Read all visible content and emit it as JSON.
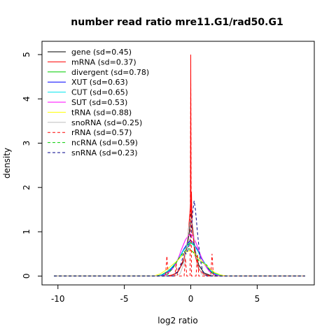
{
  "chart_data": {
    "type": "line",
    "title": "number read ratio mre11.G1/rad50.G1",
    "xlabel": "log2 ratio",
    "ylabel": "density",
    "xlim": [
      -11.2,
      9.3
    ],
    "ylim": [
      -0.2,
      5.3
    ],
    "x_ticks": [
      {
        "value": -10,
        "label": "-10"
      },
      {
        "value": -5,
        "label": "-5"
      },
      {
        "value": 0,
        "label": "0"
      },
      {
        "value": 5,
        "label": "5"
      }
    ],
    "y_ticks": [
      {
        "value": 0,
        "label": "0"
      },
      {
        "value": 1,
        "label": "1"
      },
      {
        "value": 2,
        "label": "2"
      },
      {
        "value": 3,
        "label": "3"
      },
      {
        "value": 4,
        "label": "4"
      },
      {
        "value": 5,
        "label": "5"
      }
    ],
    "grid": false,
    "legend_position": "top-left",
    "series": [
      {
        "name": "gene (sd=0.45)",
        "color": "#000000",
        "dashed": false,
        "points": [
          [
            -10.3,
            0
          ],
          [
            -2.0,
            0
          ],
          [
            -1.5,
            0.01
          ],
          [
            -1.0,
            0.08
          ],
          [
            -0.6,
            0.3
          ],
          [
            -0.3,
            0.62
          ],
          [
            -0.1,
            1.0
          ],
          [
            0,
            1.35
          ],
          [
            0.05,
            1.55
          ],
          [
            0.1,
            1.1
          ],
          [
            0.3,
            0.6
          ],
          [
            0.6,
            0.25
          ],
          [
            1.0,
            0.07
          ],
          [
            1.5,
            0.01
          ],
          [
            2.0,
            0
          ],
          [
            8.6,
            0
          ]
        ]
      },
      {
        "name": "mRNA (sd=0.37)",
        "color": "#ff0000",
        "dashed": false,
        "points": [
          [
            -10.3,
            0
          ],
          [
            -1.8,
            0
          ],
          [
            -1.3,
            0.03
          ],
          [
            -0.9,
            0.12
          ],
          [
            -0.5,
            0.4
          ],
          [
            -0.25,
            0.8
          ],
          [
            -0.1,
            1.3
          ],
          [
            -0.02,
            1.6
          ],
          [
            0,
            5.0
          ],
          [
            0.02,
            1.4
          ],
          [
            0.05,
            1.9
          ],
          [
            0.1,
            1.2
          ],
          [
            0.3,
            0.5
          ],
          [
            0.6,
            0.15
          ],
          [
            1.0,
            0.04
          ],
          [
            1.5,
            0
          ],
          [
            8.6,
            0
          ]
        ]
      },
      {
        "name": "divergent (sd=0.78)",
        "color": "#00cd00",
        "dashed": false,
        "points": [
          [
            -10.3,
            0
          ],
          [
            -2.6,
            0
          ],
          [
            -2.2,
            0.03
          ],
          [
            -1.8,
            0.1
          ],
          [
            -1.4,
            0.2
          ],
          [
            -1.1,
            0.3
          ],
          [
            -0.8,
            0.45
          ],
          [
            -0.5,
            0.6
          ],
          [
            -0.2,
            0.72
          ],
          [
            0,
            0.76
          ],
          [
            0.2,
            0.72
          ],
          [
            0.5,
            0.58
          ],
          [
            0.8,
            0.4
          ],
          [
            1.1,
            0.25
          ],
          [
            1.5,
            0.12
          ],
          [
            2.0,
            0.04
          ],
          [
            2.6,
            0
          ],
          [
            8.6,
            0
          ]
        ]
      },
      {
        "name": "XUT (sd=0.63)",
        "color": "#0000ff",
        "dashed": false,
        "points": [
          [
            -10.3,
            0
          ],
          [
            -2.4,
            0
          ],
          [
            -2.0,
            0.04
          ],
          [
            -1.6,
            0.12
          ],
          [
            -1.2,
            0.25
          ],
          [
            -0.8,
            0.45
          ],
          [
            -0.5,
            0.62
          ],
          [
            -0.2,
            0.75
          ],
          [
            0,
            0.8
          ],
          [
            0.2,
            0.75
          ],
          [
            0.5,
            0.6
          ],
          [
            0.8,
            0.4
          ],
          [
            1.2,
            0.2
          ],
          [
            1.6,
            0.07
          ],
          [
            2.0,
            0.02
          ],
          [
            2.4,
            0
          ],
          [
            8.6,
            0
          ]
        ]
      },
      {
        "name": "CUT (sd=0.65)",
        "color": "#00e5ee",
        "dashed": false,
        "points": [
          [
            -10.3,
            0
          ],
          [
            -2.5,
            0
          ],
          [
            -2.0,
            0.05
          ],
          [
            -1.6,
            0.14
          ],
          [
            -1.2,
            0.28
          ],
          [
            -0.8,
            0.45
          ],
          [
            -0.5,
            0.6
          ],
          [
            -0.2,
            0.7
          ],
          [
            0,
            0.74
          ],
          [
            0.2,
            0.7
          ],
          [
            0.5,
            0.58
          ],
          [
            0.8,
            0.42
          ],
          [
            1.2,
            0.22
          ],
          [
            1.6,
            0.09
          ],
          [
            2.0,
            0.03
          ],
          [
            2.5,
            0
          ],
          [
            8.6,
            0
          ]
        ]
      },
      {
        "name": "SUT (sd=0.53)",
        "color": "#ff00ff",
        "dashed": false,
        "points": [
          [
            -10.3,
            0
          ],
          [
            -2.2,
            0
          ],
          [
            -1.8,
            0.04
          ],
          [
            -1.4,
            0.15
          ],
          [
            -1.0,
            0.35
          ],
          [
            -0.7,
            0.6
          ],
          [
            -0.4,
            0.82
          ],
          [
            -0.15,
            0.92
          ],
          [
            0,
            0.95
          ],
          [
            0.15,
            0.9
          ],
          [
            0.4,
            0.75
          ],
          [
            0.7,
            0.5
          ],
          [
            1.0,
            0.28
          ],
          [
            1.4,
            0.1
          ],
          [
            1.8,
            0.03
          ],
          [
            2.2,
            0
          ],
          [
            8.6,
            0
          ]
        ]
      },
      {
        "name": "tRNA (sd=0.88)",
        "color": "#ffff00",
        "dashed": false,
        "points": [
          [
            -10.3,
            0
          ],
          [
            -2.8,
            0
          ],
          [
            -2.3,
            0.05
          ],
          [
            -1.8,
            0.15
          ],
          [
            -1.4,
            0.25
          ],
          [
            -1.0,
            0.35
          ],
          [
            -0.6,
            0.48
          ],
          [
            -0.3,
            0.55
          ],
          [
            0,
            0.58
          ],
          [
            0.3,
            0.5
          ],
          [
            0.6,
            0.4
          ],
          [
            1.0,
            0.28
          ],
          [
            1.4,
            0.18
          ],
          [
            1.8,
            0.08
          ],
          [
            2.3,
            0.02
          ],
          [
            2.8,
            0
          ],
          [
            8.6,
            0
          ]
        ]
      },
      {
        "name": "snoRNA (sd=0.25)",
        "color": "#c0c0c0",
        "dashed": false,
        "points": [
          [
            -10.3,
            0
          ],
          [
            -1.2,
            0
          ],
          [
            -0.8,
            0.05
          ],
          [
            -0.5,
            0.3
          ],
          [
            -0.3,
            0.7
          ],
          [
            -0.15,
            1.1
          ],
          [
            0,
            1.35
          ],
          [
            0.15,
            1.15
          ],
          [
            0.3,
            0.75
          ],
          [
            0.5,
            0.3
          ],
          [
            0.8,
            0.05
          ],
          [
            1.2,
            0
          ],
          [
            8.6,
            0
          ]
        ]
      },
      {
        "name": "rRNA (sd=0.57)",
        "color": "#ff0000",
        "dashed": true,
        "points": [
          [
            -10.3,
            0
          ],
          [
            -1.9,
            0
          ],
          [
            -1.8,
            0.45
          ],
          [
            -1.7,
            0
          ],
          [
            -1.2,
            0
          ],
          [
            -1.1,
            0.3
          ],
          [
            -1.0,
            0
          ],
          [
            -0.5,
            0
          ],
          [
            -0.4,
            0.4
          ],
          [
            -0.3,
            0
          ],
          [
            -0.05,
            0
          ],
          [
            0,
            4.5
          ],
          [
            0.05,
            0
          ],
          [
            0.4,
            0
          ],
          [
            0.5,
            0.5
          ],
          [
            0.6,
            0
          ],
          [
            1.5,
            0
          ],
          [
            1.6,
            0.5
          ],
          [
            1.7,
            0
          ],
          [
            8.6,
            0
          ]
        ]
      },
      {
        "name": "ncRNA (sd=0.59)",
        "color": "#00cd00",
        "dashed": true,
        "points": [
          [
            -10.3,
            0
          ],
          [
            -2.0,
            0
          ],
          [
            -1.7,
            0.05
          ],
          [
            -1.3,
            0.2
          ],
          [
            -0.9,
            0.4
          ],
          [
            -0.5,
            0.55
          ],
          [
            -0.2,
            0.62
          ],
          [
            0,
            0.6
          ],
          [
            0.3,
            0.5
          ],
          [
            0.6,
            0.35
          ],
          [
            0.9,
            0.3
          ],
          [
            1.2,
            0.25
          ],
          [
            1.5,
            0.1
          ],
          [
            1.8,
            0.02
          ],
          [
            2.0,
            0
          ],
          [
            8.6,
            0
          ]
        ]
      },
      {
        "name": "snRNA (sd=0.23)",
        "color": "#00008b",
        "dashed": true,
        "points": [
          [
            -10.3,
            0
          ],
          [
            -1.3,
            0
          ],
          [
            -1.0,
            0.1
          ],
          [
            -0.7,
            0.3
          ],
          [
            -0.5,
            0.55
          ],
          [
            -0.35,
            0.5
          ],
          [
            -0.2,
            0.6
          ],
          [
            0,
            0.9
          ],
          [
            0.15,
            1.45
          ],
          [
            0.25,
            1.7
          ],
          [
            0.35,
            1.5
          ],
          [
            0.5,
            1.0
          ],
          [
            0.7,
            0.4
          ],
          [
            0.9,
            0.1
          ],
          [
            1.2,
            0
          ],
          [
            8.6,
            0
          ]
        ]
      }
    ]
  }
}
